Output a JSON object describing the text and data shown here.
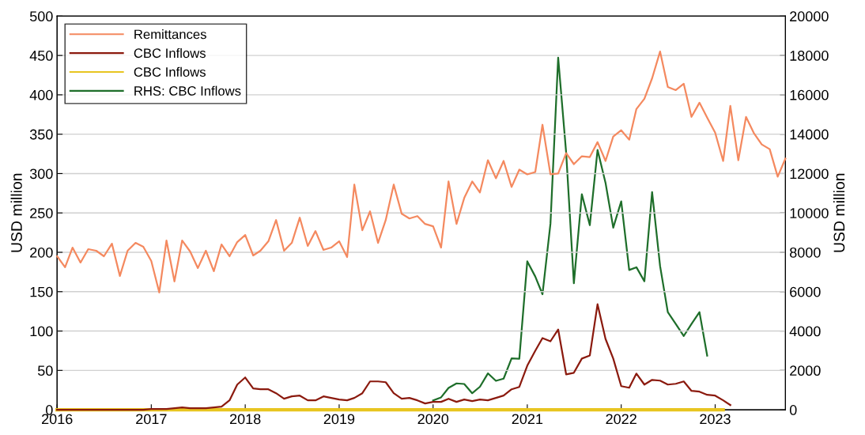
{
  "chart_data": {
    "type": "line",
    "xlabel": null,
    "ylabel": "USD million",
    "y2label": "USD million",
    "x": [
      "2016-01",
      "2016-02",
      "2016-03",
      "2016-04",
      "2016-05",
      "2016-06",
      "2016-07",
      "2016-08",
      "2016-09",
      "2016-10",
      "2016-11",
      "2016-12",
      "2017-01",
      "2017-02",
      "2017-03",
      "2017-04",
      "2017-05",
      "2017-06",
      "2017-07",
      "2017-08",
      "2017-09",
      "2017-10",
      "2017-11",
      "2017-12",
      "2018-01",
      "2018-02",
      "2018-03",
      "2018-04",
      "2018-05",
      "2018-06",
      "2018-07",
      "2018-08",
      "2018-09",
      "2018-10",
      "2018-11",
      "2018-12",
      "2019-01",
      "2019-02",
      "2019-03",
      "2019-04",
      "2019-05",
      "2019-06",
      "2019-07",
      "2019-08",
      "2019-09",
      "2019-10",
      "2019-11",
      "2019-12",
      "2020-01",
      "2020-02",
      "2020-03",
      "2020-04",
      "2020-05",
      "2020-06",
      "2020-07",
      "2020-08",
      "2020-09",
      "2020-10",
      "2020-11",
      "2020-12",
      "2021-01",
      "2021-02",
      "2021-03",
      "2021-04",
      "2021-05",
      "2021-06",
      "2021-07",
      "2021-08",
      "2021-09",
      "2021-10",
      "2021-11",
      "2021-12",
      "2022-01",
      "2022-02",
      "2022-03",
      "2022-04",
      "2022-05",
      "2022-06",
      "2022-07",
      "2022-08",
      "2022-09",
      "2022-10",
      "2022-11",
      "2022-12",
      "2023-01",
      "2023-02",
      "2023-03",
      "2023-04",
      "2023-05",
      "2023-06",
      "2023-07",
      "2023-08",
      "2023-09",
      "2023-10"
    ],
    "xlim": [
      "2016-01",
      "2023-10"
    ],
    "xticks": [
      {
        "value": "2016-01",
        "label": "2016"
      },
      {
        "value": "2017-01",
        "label": "2017"
      },
      {
        "value": "2018-01",
        "label": "2018"
      },
      {
        "value": "2019-01",
        "label": "2019"
      },
      {
        "value": "2020-01",
        "label": "2020"
      },
      {
        "value": "2021-01",
        "label": "2021"
      },
      {
        "value": "2022-01",
        "label": "2022"
      },
      {
        "value": "2023-01",
        "label": "2023"
      }
    ],
    "ylim": [
      0,
      500
    ],
    "yticks": [
      0,
      50,
      100,
      150,
      200,
      250,
      300,
      350,
      400,
      450,
      500
    ],
    "y2lim": [
      0,
      20000
    ],
    "y2ticks": [
      0,
      2000,
      4000,
      6000,
      8000,
      10000,
      12000,
      14000,
      16000,
      18000,
      20000
    ],
    "grid": "y",
    "legend": "top left",
    "marker": "none",
    "line_style": "solid",
    "series": [
      {
        "name": "Remittances",
        "color": "#f4895f",
        "values": [
          195,
          181,
          206,
          187,
          204,
          202,
          195,
          211,
          170,
          202,
          212,
          207,
          189,
          149,
          215,
          163,
          215,
          201,
          180,
          202,
          176,
          210,
          195,
          213,
          222,
          196,
          202,
          214,
          241,
          202,
          212,
          244,
          208,
          227,
          203,
          206,
          214,
          194,
          286,
          228,
          252,
          212,
          241,
          286,
          249,
          243,
          246,
          236,
          233,
          206,
          290,
          236,
          269,
          290,
          276,
          317,
          294,
          316,
          283,
          305,
          299,
          302,
          362,
          299,
          300,
          326,
          312,
          322,
          321,
          340,
          316,
          347,
          355,
          343,
          382,
          395,
          421,
          455,
          410,
          406,
          414,
          372,
          390,
          371,
          352,
          316,
          386,
          317,
          372,
          351,
          337,
          331,
          296,
          319
        ]
      },
      {
        "name": "CBC Inflows",
        "color": "#8b1a0e",
        "values": [
          0,
          0,
          0,
          0,
          0,
          0,
          0,
          0,
          0,
          0,
          0,
          0,
          1,
          1,
          1,
          2,
          3,
          2,
          2,
          2,
          3,
          4,
          12,
          32,
          41,
          27,
          26,
          26,
          21,
          14,
          17,
          18,
          12,
          12,
          17,
          15,
          13,
          12,
          15,
          21,
          36,
          36,
          35,
          21,
          14,
          15,
          12,
          8,
          10,
          10,
          14,
          10,
          13,
          11,
          13,
          12,
          15,
          18,
          26,
          29,
          56,
          75,
          91,
          87,
          102,
          45,
          47,
          65,
          69,
          134,
          90,
          65,
          30,
          28,
          46,
          32,
          38,
          37,
          32,
          33,
          36,
          24,
          23,
          19,
          18,
          12,
          6,
          null,
          null,
          null,
          null,
          null,
          null,
          null
        ]
      },
      {
        "name": "CBC Inflows",
        "color": "#e8c520",
        "values": [
          0,
          0,
          0,
          0,
          0,
          0,
          0,
          0,
          0,
          0,
          0,
          0,
          0,
          0,
          0,
          0,
          0,
          0,
          0,
          0,
          0,
          0,
          0,
          0,
          0,
          0,
          0,
          0,
          0,
          0,
          0,
          0,
          0,
          0,
          0,
          0,
          0,
          0,
          0,
          0,
          0,
          0,
          0,
          0,
          0,
          0,
          0,
          0,
          0,
          0,
          0,
          0,
          0,
          0,
          0,
          0,
          0,
          0,
          0,
          0,
          0,
          0,
          0,
          0,
          0,
          0,
          0,
          0,
          0,
          0,
          0,
          0,
          0,
          0,
          0,
          0,
          0,
          0,
          0,
          0,
          0,
          0,
          0,
          0,
          0,
          0,
          null,
          null,
          null,
          null,
          null,
          null,
          null,
          null
        ]
      },
      {
        "name": "RHS: CBC Inflows",
        "color": "#1e6e2a",
        "axis": "y2",
        "values": [
          null,
          null,
          null,
          null,
          null,
          null,
          null,
          null,
          null,
          null,
          null,
          null,
          null,
          null,
          null,
          null,
          null,
          null,
          null,
          null,
          null,
          null,
          null,
          null,
          null,
          null,
          null,
          null,
          null,
          null,
          null,
          null,
          null,
          null,
          null,
          null,
          null,
          null,
          null,
          null,
          null,
          null,
          null,
          null,
          null,
          null,
          null,
          null,
          470,
          630,
          1110,
          1340,
          1310,
          840,
          1170,
          1850,
          1470,
          1580,
          2610,
          2590,
          7540,
          6770,
          5870,
          9450,
          17890,
          13070,
          6430,
          10950,
          9380,
          13200,
          11530,
          9250,
          10590,
          7100,
          7240,
          6530,
          11060,
          7300,
          4960,
          4360,
          3750,
          4360,
          4960,
          2750,
          null,
          null,
          null,
          null,
          null,
          null,
          null,
          null,
          null,
          null
        ]
      }
    ]
  }
}
